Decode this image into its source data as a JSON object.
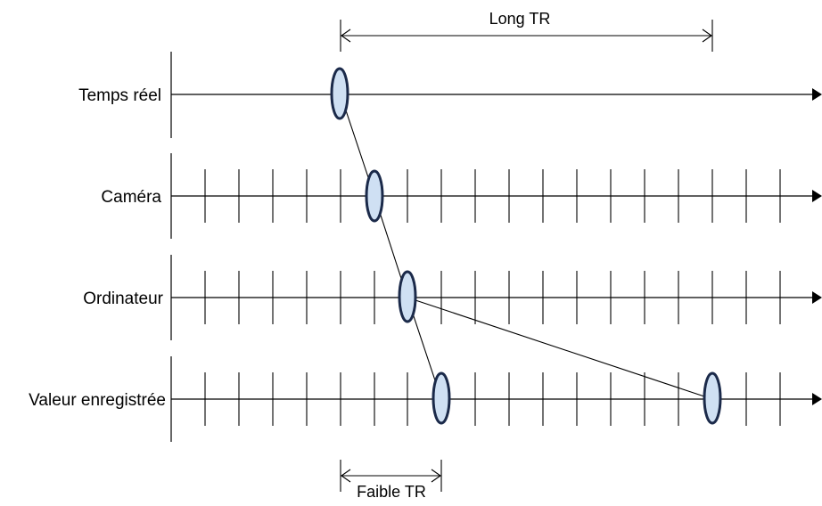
{
  "rows": [
    {
      "id": "temps-reel",
      "label": "Temps réel"
    },
    {
      "id": "camera",
      "label": "Caméra"
    },
    {
      "id": "ordinateur",
      "label": "Ordinateur"
    },
    {
      "id": "valeur-enregistree",
      "label": "Valeur enregistrée"
    }
  ],
  "measures": {
    "long": {
      "label": "Long TR"
    },
    "short": {
      "label": "Faible TR"
    }
  },
  "colors": {
    "line": "#000000",
    "event_fill": "#cfe0f3",
    "event_stroke": "#1b2a4a"
  }
}
